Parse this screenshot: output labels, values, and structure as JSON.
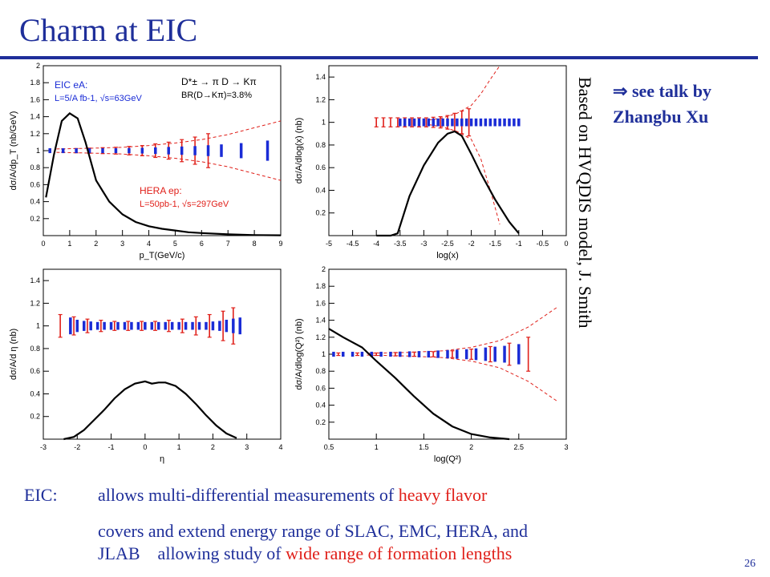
{
  "slide": {
    "title": "Charm at EIC",
    "side_note": "Based on HVQDIS model, J. Smith",
    "see_talk": {
      "arrow": "⇒",
      "line1": "see talk by",
      "line2": "Zhangbu Xu"
    },
    "bullets": [
      {
        "label": "EIC:",
        "text1": "allows multi-differential measurements of ",
        "highlight1": "heavy flavor"
      },
      {
        "text1": "covers and extend energy range of SLAC, EMC, HERA, and"
      },
      {
        "text1": "JLAB    allowing study of ",
        "highlight1": "wide range of formation lengths"
      }
    ],
    "page_number": "26",
    "colors": {
      "title": "#1f2f9a",
      "eic": "#1a2cd6",
      "hera": "#e0201a",
      "curve": "#000000"
    }
  },
  "chart_data": [
    {
      "type": "line",
      "id": "pt",
      "xlabel": "p_T(GeV/c)",
      "ylabel": "dσ/A/dp_T (nb/GeV)",
      "xlim": [
        0,
        9
      ],
      "ylim": [
        0,
        2
      ],
      "xticks": [
        "0",
        "1",
        "2",
        "3",
        "4",
        "5",
        "6",
        "7",
        "8",
        "9"
      ],
      "yticks": [
        "0.2",
        "0.4",
        "0.6",
        "0.8",
        "1",
        "1.2",
        "1.4",
        "1.6",
        "1.8",
        "2"
      ],
      "legend_texts": [
        "EIC eA:",
        "L=5/A fb-1, √s=63GeV",
        "D*± → π D → Kπ",
        "BR(D→Kπ)=3.8%",
        "HERA ep:",
        "L=50pb-1, √s=297GeV"
      ],
      "curve": {
        "x": [
          0.1,
          0.4,
          0.7,
          1.0,
          1.3,
          1.6,
          2.0,
          2.5,
          3.0,
          3.5,
          4.0,
          4.5,
          5.0,
          5.5,
          6.0,
          7.0,
          8.0,
          9.0
        ],
        "y": [
          0.45,
          0.95,
          1.35,
          1.44,
          1.38,
          1.1,
          0.65,
          0.4,
          0.25,
          0.16,
          0.11,
          0.08,
          0.06,
          0.04,
          0.03,
          0.015,
          0.007,
          0.004
        ]
      },
      "eic_bars": {
        "x": [
          0.25,
          0.75,
          1.25,
          1.75,
          2.25,
          2.75,
          3.25,
          3.75,
          4.25,
          4.75,
          5.25,
          5.75,
          6.25,
          6.75,
          7.5,
          8.5
        ],
        "err": [
          0.01,
          0.01,
          0.01,
          0.01,
          0.01,
          0.01,
          0.012,
          0.015,
          0.02,
          0.025,
          0.03,
          0.035,
          0.045,
          0.055,
          0.07,
          0.1
        ]
      },
      "hera_bars": {
        "x": [
          0.75,
          1.25,
          1.75,
          2.25,
          2.75,
          3.25,
          3.75,
          4.25,
          4.75,
          5.25,
          5.75,
          6.25
        ],
        "err": [
          0.02,
          0.025,
          0.03,
          0.035,
          0.04,
          0.05,
          0.06,
          0.08,
          0.1,
          0.13,
          0.16,
          0.2
        ]
      },
      "envelope": {
        "x": [
          0.5,
          2,
          3,
          4,
          5,
          6,
          7,
          8,
          9
        ],
        "upper": [
          1.02,
          1.03,
          1.04,
          1.06,
          1.09,
          1.13,
          1.19,
          1.27,
          1.35
        ],
        "lower": [
          0.98,
          0.97,
          0.96,
          0.94,
          0.91,
          0.87,
          0.81,
          0.73,
          0.65
        ]
      }
    },
    {
      "type": "line",
      "id": "logx",
      "xlabel": "log(x)",
      "ylabel": "dσ/A/dlog(x) (nb)",
      "xlim": [
        -5,
        0
      ],
      "ylim": [
        0,
        1.5
      ],
      "xticks": [
        "-5",
        "-4.5",
        "-4",
        "-3.5",
        "-3",
        "-2.5",
        "-2",
        "-1.5",
        "-1",
        "-0.5",
        "0"
      ],
      "yticks": [
        "0.2",
        "0.4",
        "0.6",
        "0.8",
        "1",
        "1.2",
        "1.4"
      ],
      "curve": {
        "x": [
          -4.0,
          -3.7,
          -3.55,
          -3.3,
          -3.0,
          -2.7,
          -2.5,
          -2.35,
          -2.2,
          -2.0,
          -1.8,
          -1.5,
          -1.2,
          -1.0
        ],
        "y": [
          0.0,
          0.0,
          0.02,
          0.35,
          0.62,
          0.82,
          0.9,
          0.92,
          0.88,
          0.72,
          0.55,
          0.32,
          0.12,
          0.02
        ]
      },
      "eic_bars": {
        "x": [
          -3.5,
          -3.4,
          -3.3,
          -3.2,
          -3.1,
          -3.0,
          -2.9,
          -2.8,
          -2.7,
          -2.6,
          -2.5,
          -2.4,
          -2.3,
          -2.2,
          -2.1,
          -2.0,
          -1.9,
          -1.8,
          -1.7,
          -1.6,
          -1.5,
          -1.4,
          -1.3,
          -1.2,
          -1.1,
          -1.0
        ],
        "err": [
          0.02,
          0.02,
          0.02,
          0.02,
          0.02,
          0.02,
          0.02,
          0.02,
          0.02,
          0.02,
          0.02,
          0.02,
          0.02,
          0.02,
          0.02,
          0.02,
          0.02,
          0.02,
          0.02,
          0.02,
          0.02,
          0.02,
          0.02,
          0.02,
          0.02,
          0.02
        ]
      },
      "hera_bars": {
        "x": [
          -4.0,
          -3.85,
          -3.7,
          -3.55,
          -3.4,
          -3.25,
          -3.1,
          -2.95,
          -2.8,
          -2.65,
          -2.5,
          -2.35,
          -2.2,
          -2.05
        ],
        "err": [
          0.04,
          0.04,
          0.04,
          0.04,
          0.04,
          0.04,
          0.04,
          0.04,
          0.045,
          0.05,
          0.06,
          0.08,
          0.1,
          0.12
        ]
      },
      "envelope": {
        "x": [
          -2.9,
          -2.6,
          -2.3,
          -2.0,
          -1.8,
          -1.6,
          -1.4
        ],
        "upper": [
          1.02,
          1.04,
          1.08,
          1.15,
          1.25,
          1.38,
          1.5
        ],
        "lower": [
          0.98,
          0.96,
          0.92,
          0.85,
          0.68,
          0.4,
          0.1
        ]
      }
    },
    {
      "type": "line",
      "id": "eta",
      "xlabel": "η",
      "ylabel": "dσ/A/d η (nb)",
      "xlim": [
        -3,
        4
      ],
      "ylim": [
        0,
        1.5
      ],
      "xticks": [
        "-3",
        "-2",
        "-1",
        "0",
        "1",
        "2",
        "3",
        "4"
      ],
      "yticks": [
        "0.2",
        "0.4",
        "0.6",
        "0.8",
        "1",
        "1.2",
        "1.4"
      ],
      "curve": {
        "x": [
          -2.4,
          -2.1,
          -1.8,
          -1.5,
          -1.2,
          -0.9,
          -0.6,
          -0.3,
          0.0,
          0.2,
          0.4,
          0.6,
          0.9,
          1.2,
          1.5,
          1.8,
          2.1,
          2.4,
          2.7
        ],
        "y": [
          0.0,
          0.02,
          0.08,
          0.17,
          0.26,
          0.36,
          0.44,
          0.49,
          0.51,
          0.49,
          0.5,
          0.5,
          0.47,
          0.4,
          0.31,
          0.21,
          0.12,
          0.05,
          0.01
        ]
      },
      "eic_bars": {
        "x": [
          -2.2,
          -2.0,
          -1.8,
          -1.6,
          -1.4,
          -1.2,
          -1.0,
          -0.8,
          -0.6,
          -0.4,
          -0.2,
          0.0,
          0.2,
          0.4,
          0.6,
          0.8,
          1.0,
          1.2,
          1.4,
          1.6,
          1.8,
          2.0,
          2.2,
          2.4,
          2.6,
          2.8
        ],
        "err": [
          0.06,
          0.04,
          0.03,
          0.025,
          0.02,
          0.02,
          0.02,
          0.02,
          0.02,
          0.02,
          0.02,
          0.02,
          0.02,
          0.02,
          0.02,
          0.02,
          0.02,
          0.02,
          0.02,
          0.02,
          0.02,
          0.025,
          0.03,
          0.04,
          0.05,
          0.06
        ]
      },
      "hera_bars": {
        "x": [
          -2.5,
          -2.1,
          -1.7,
          -1.3,
          -0.9,
          -0.5,
          -0.1,
          0.3,
          0.7,
          1.1,
          1.5,
          1.9,
          2.3,
          2.6
        ],
        "err": [
          0.1,
          0.08,
          0.06,
          0.05,
          0.04,
          0.04,
          0.04,
          0.04,
          0.05,
          0.06,
          0.08,
          0.1,
          0.13,
          0.16
        ]
      }
    },
    {
      "type": "line",
      "id": "logq2",
      "xlabel": "log(Q²)",
      "ylabel": "dσ/A/dlog(Q²) (nb)",
      "xlim": [
        0.5,
        3
      ],
      "ylim": [
        0,
        2
      ],
      "xticks": [
        "0.5",
        "1",
        "1.5",
        "2",
        "2.5",
        "3"
      ],
      "yticks": [
        "0.2",
        "0.4",
        "0.6",
        "0.8",
        "1",
        "1.2",
        "1.4",
        "1.6",
        "1.8",
        "2"
      ],
      "curve": {
        "x": [
          0.5,
          0.65,
          0.85,
          1.0,
          1.2,
          1.4,
          1.6,
          1.8,
          2.0,
          2.2,
          2.4
        ],
        "y": [
          1.3,
          1.2,
          1.08,
          0.92,
          0.72,
          0.5,
          0.3,
          0.15,
          0.06,
          0.02,
          0.0
        ]
      },
      "eic_bars": {
        "x": [
          0.55,
          0.65,
          0.75,
          0.85,
          0.95,
          1.05,
          1.15,
          1.25,
          1.35,
          1.45,
          1.55,
          1.65,
          1.75,
          1.85,
          1.95,
          2.05,
          2.15,
          2.25,
          2.35,
          2.5
        ],
        "err": [
          0.01,
          0.01,
          0.01,
          0.01,
          0.01,
          0.01,
          0.01,
          0.012,
          0.015,
          0.018,
          0.02,
          0.025,
          0.03,
          0.035,
          0.04,
          0.05,
          0.06,
          0.07,
          0.08,
          0.1
        ]
      },
      "hera_bars": {
        "x": [
          0.6,
          0.8,
          1.0,
          1.2,
          1.4,
          1.6,
          1.8,
          2.0,
          2.2,
          2.4,
          2.6
        ],
        "err": [
          0.015,
          0.015,
          0.015,
          0.02,
          0.025,
          0.03,
          0.04,
          0.06,
          0.09,
          0.13,
          0.2
        ]
      },
      "envelope": {
        "x": [
          0.9,
          1.3,
          1.7,
          2.0,
          2.3,
          2.6,
          2.9
        ],
        "upper": [
          1.01,
          1.02,
          1.04,
          1.08,
          1.16,
          1.32,
          1.55
        ],
        "lower": [
          0.99,
          0.98,
          0.96,
          0.92,
          0.84,
          0.68,
          0.45
        ]
      }
    }
  ]
}
